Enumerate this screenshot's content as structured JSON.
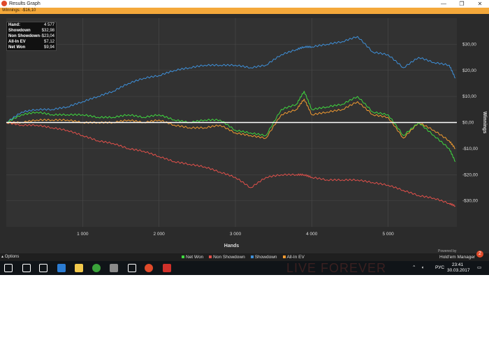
{
  "window": {
    "title": "Results Graph",
    "controls": [
      "—",
      "❐",
      "✕"
    ],
    "winnings_label": "Winnings: -$16,10"
  },
  "infobox": [
    {
      "k": "Hand:",
      "v": "4 577"
    },
    {
      "k": "Showdown",
      "v": "$32,98"
    },
    {
      "k": "Non Showdown",
      "v": "-$23,04"
    },
    {
      "k": "All-In EV",
      "v": "$7,12"
    },
    {
      "k": "Net Won",
      "v": "$9,94"
    }
  ],
  "footer": {
    "options": "Options",
    "powered": "Powered by",
    "brand": "Hold'em Manager",
    "brand_badge": "2"
  },
  "colors": {
    "net_won": "#3fd83f",
    "non_showdown": "#e0504a",
    "showdown": "#3e8fd8",
    "allin_ev": "#f09a30",
    "zero_line": "#ffffff",
    "grid": "#4a4a4a",
    "plot_bg": "#323232"
  },
  "taskbar": {
    "lang": "РУС",
    "time": "23:41",
    "date": "30.03.2017",
    "banner": "LIVE FOREVER",
    "icons": [
      "windows-icon",
      "search-icon",
      "taskview-icon",
      "edge-icon",
      "explorer-icon",
      "app-green-icon",
      "app-gray-icon",
      "store-icon",
      "chrome-icon",
      "hm2-icon"
    ]
  },
  "chart_data": {
    "type": "line",
    "xlabel": "Hands",
    "ylabel": "Winnings",
    "xlim": [
      0,
      5900
    ],
    "ylim": [
      -40,
      40
    ],
    "x_ticks": [
      1000,
      2000,
      3000,
      4000,
      5000
    ],
    "x_tick_labels": [
      "1 000",
      "2 000",
      "3 000",
      "4 000",
      "5 000"
    ],
    "y_ticks": [
      30,
      20,
      10,
      0,
      -10,
      -20,
      -30
    ],
    "y_tick_labels": [
      "$30,00",
      "$20,00",
      "$10,00",
      "$0,00",
      "-$10,00",
      "-$20,00",
      "-$30,00"
    ],
    "grid": true,
    "legend_position": "bottom",
    "x": [
      0,
      200,
      400,
      600,
      800,
      1000,
      1200,
      1400,
      1600,
      1800,
      2000,
      2200,
      2400,
      2600,
      2800,
      3000,
      3200,
      3400,
      3600,
      3800,
      3900,
      4000,
      4200,
      4400,
      4600,
      4800,
      5000,
      5200,
      5400,
      5600,
      5800,
      5880
    ],
    "series": [
      {
        "name": "Net Won",
        "values": [
          0,
          3,
          4,
          3,
          3,
          3,
          2,
          2,
          3,
          2,
          3,
          1,
          0,
          1,
          1,
          -3,
          -4,
          -5,
          5,
          7,
          12,
          5,
          6,
          7,
          10,
          4,
          3,
          -5,
          0,
          -5,
          -10,
          -15
        ]
      },
      {
        "name": "Non Showdown",
        "values": [
          0,
          -1,
          -1,
          -2,
          -3,
          -5,
          -7,
          -8,
          -10,
          -11,
          -13,
          -15,
          -16,
          -17,
          -19,
          -21,
          -25,
          -21,
          -20,
          -20,
          -20,
          -21,
          -22,
          -22,
          -22,
          -23,
          -24,
          -26,
          -28,
          -29,
          -31,
          -32
        ]
      },
      {
        "name": "Showdown",
        "values": [
          0,
          4,
          5,
          5,
          6,
          8,
          10,
          12,
          15,
          17,
          18,
          20,
          21,
          22,
          22,
          22,
          21,
          22,
          26,
          28,
          29,
          29,
          30,
          31,
          33,
          27,
          26,
          21,
          25,
          23,
          22,
          17
        ]
      },
      {
        "name": "All-In EV",
        "values": [
          0,
          0,
          1,
          1,
          1,
          0,
          0,
          0,
          1,
          0,
          1,
          -1,
          -2,
          -2,
          -1,
          -4,
          -5,
          -6,
          3,
          5,
          9,
          3,
          4,
          5,
          8,
          3,
          2,
          -6,
          0,
          -3,
          -7,
          -10
        ]
      }
    ]
  }
}
